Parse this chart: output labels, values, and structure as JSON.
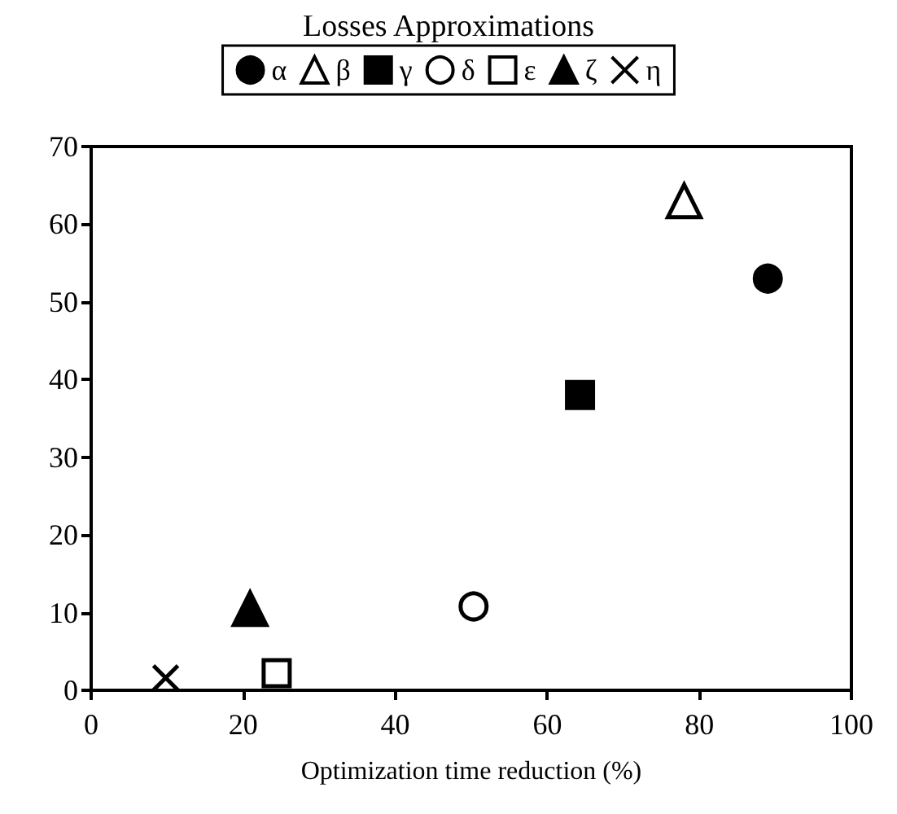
{
  "chart_data": {
    "type": "scatter",
    "title": "Losses Approximations",
    "xlabel": "Optimization time reduction (%)",
    "xlim": [
      0,
      100
    ],
    "xticks": [
      0,
      20,
      40,
      60,
      80,
      100
    ],
    "ylim": [
      0,
      70
    ],
    "yticks": [
      0,
      10,
      20,
      30,
      40,
      50,
      60,
      70
    ],
    "grid": false,
    "legend": "top",
    "series": [
      {
        "name": "α",
        "color": "#000000",
        "marker": "circle",
        "x": [
          89
        ],
        "values": [
          53
        ]
      },
      {
        "name": "β",
        "color": "#000000",
        "marker": "triangle-open",
        "x": [
          78
        ],
        "values": [
          63
        ]
      },
      {
        "name": "γ",
        "color": "#000000",
        "marker": "square",
        "x": [
          64.3
        ],
        "values": [
          38
        ]
      },
      {
        "name": "δ",
        "color": "#000000",
        "marker": "circle-open",
        "x": [
          50.3
        ],
        "values": [
          10.8
        ]
      },
      {
        "name": "ε",
        "color": "#000000",
        "marker": "square-open",
        "x": [
          24.4
        ],
        "values": [
          2.2
        ]
      },
      {
        "name": "ζ",
        "color": "#000000",
        "marker": "triangle",
        "x": [
          20.9
        ],
        "values": [
          10.5
        ]
      },
      {
        "name": "η",
        "color": "#000000",
        "marker": "cross",
        "x": [
          9.8
        ],
        "values": [
          1.6
        ]
      }
    ]
  }
}
